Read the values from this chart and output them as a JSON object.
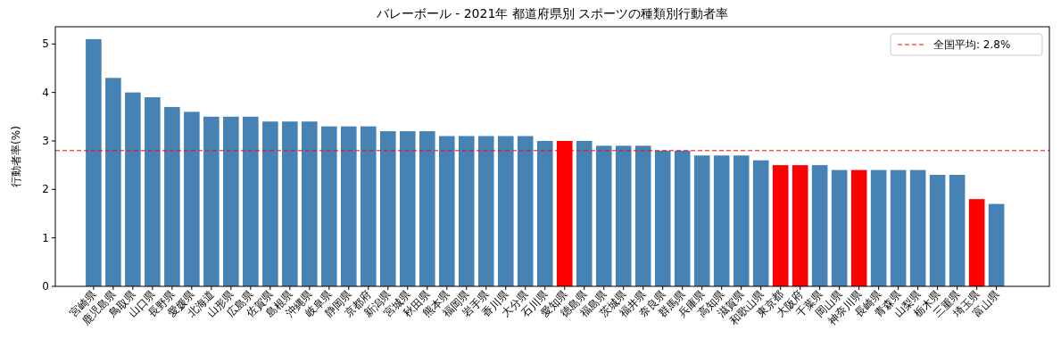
{
  "chart_data": {
    "type": "bar",
    "title": "バレーボール - 2021年 都道府県別 スポーツの種類別行動者率",
    "ylabel": "行動者率(%)",
    "categories": [
      "宮崎県",
      "鹿児島県",
      "鳥取県",
      "山口県",
      "長野県",
      "愛媛県",
      "北海道",
      "山形県",
      "広島県",
      "佐賀県",
      "島根県",
      "沖縄県",
      "岐阜県",
      "静岡県",
      "京都府",
      "新潟県",
      "宮城県",
      "秋田県",
      "熊本県",
      "福岡県",
      "岩手県",
      "香川県",
      "大分県",
      "石川県",
      "愛知県",
      "徳島県",
      "福島県",
      "茨城県",
      "福井県",
      "奈良県",
      "群馬県",
      "兵庫県",
      "高知県",
      "滋賀県",
      "和歌山県",
      "東京都",
      "大阪府",
      "千葉県",
      "岡山県",
      "神奈川県",
      "長崎県",
      "青森県",
      "山梨県",
      "栃木県",
      "三重県",
      "埼玉県",
      "富山県"
    ],
    "values": [
      5.1,
      4.3,
      4.0,
      3.9,
      3.7,
      3.6,
      3.5,
      3.5,
      3.5,
      3.4,
      3.4,
      3.4,
      3.3,
      3.3,
      3.3,
      3.2,
      3.2,
      3.2,
      3.1,
      3.1,
      3.1,
      3.1,
      3.1,
      3.0,
      3.0,
      3.0,
      2.9,
      2.9,
      2.9,
      2.8,
      2.8,
      2.7,
      2.7,
      2.7,
      2.6,
      2.5,
      2.5,
      2.5,
      2.4,
      2.4,
      2.4,
      2.4,
      2.4,
      2.3,
      2.3,
      1.8,
      1.7
    ],
    "colors": [
      "#4682b4",
      "#4682b4",
      "#4682b4",
      "#4682b4",
      "#4682b4",
      "#4682b4",
      "#4682b4",
      "#4682b4",
      "#4682b4",
      "#4682b4",
      "#4682b4",
      "#4682b4",
      "#4682b4",
      "#4682b4",
      "#4682b4",
      "#4682b4",
      "#4682b4",
      "#4682b4",
      "#4682b4",
      "#4682b4",
      "#4682b4",
      "#4682b4",
      "#4682b4",
      "#4682b4",
      "#ff0000",
      "#4682b4",
      "#4682b4",
      "#4682b4",
      "#4682b4",
      "#4682b4",
      "#4682b4",
      "#4682b4",
      "#4682b4",
      "#4682b4",
      "#4682b4",
      "#ff0000",
      "#ff0000",
      "#4682b4",
      "#4682b4",
      "#ff0000",
      "#4682b4",
      "#4682b4",
      "#4682b4",
      "#4682b4",
      "#4682b4",
      "#ff0000",
      "#4682b4"
    ],
    "ylim": [
      0,
      5.355
    ],
    "yticks": [
      0,
      1,
      2,
      3,
      4,
      5
    ],
    "ref_lines": [
      {
        "axis": "y",
        "value": 2.8,
        "label": "全国平均: 2.8%",
        "color": "#ff0000",
        "line_style": "dashed"
      }
    ],
    "legend": "top right"
  }
}
